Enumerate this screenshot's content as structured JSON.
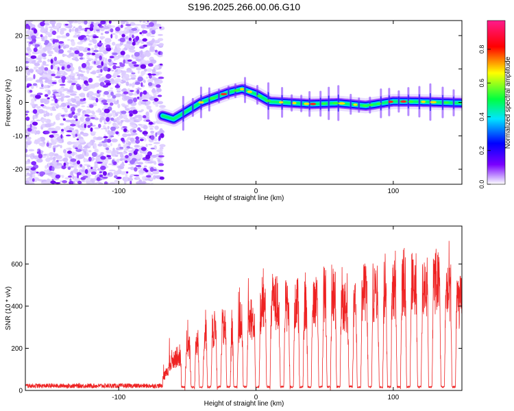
{
  "title": "S196.2025.266.00.06.G10",
  "colors": {
    "snr_line": "#ee2222",
    "axis": "#000000",
    "colormap": [
      "#ffffff",
      "#c8a0ff",
      "#7a00ff",
      "#0000ff",
      "#00e5ff",
      "#00ff40",
      "#ffff00",
      "#ff0000",
      "#ff1a8c"
    ]
  },
  "chart_data": [
    {
      "type": "heatmap",
      "id": "spectrogram",
      "xlabel": "Height of straight line (km)",
      "ylabel": "Frequency (Hz)",
      "xlim": [
        -168,
        150
      ],
      "ylim": [
        -24.5,
        24.5
      ],
      "xticks": [
        -100,
        0,
        100
      ],
      "xtick_labels": [
        "-100",
        "0",
        "100"
      ],
      "yticks": [
        -20,
        -10,
        0,
        10,
        20
      ],
      "ytick_labels": [
        "-20",
        "-10",
        "0",
        "10",
        "20"
      ],
      "noise_region_x": [
        -168,
        -68
      ],
      "ridge_start_x": -68,
      "ridge_points": {
        "x": [
          -68,
          -60,
          -50,
          -40,
          -30,
          -20,
          -10,
          0,
          10,
          20,
          40,
          60,
          80,
          100,
          120,
          150
        ],
        "y": [
          -4,
          -5,
          -2.5,
          0,
          1.5,
          3,
          4,
          2.5,
          0.2,
          0,
          -0.5,
          -0.2,
          -1,
          0.3,
          0.2,
          -0.2
        ]
      },
      "colorbar": {
        "label": "Normalized spectral amplitude",
        "range": [
          0.0,
          0.97
        ],
        "ticks": [
          0.0,
          0.2,
          0.4,
          0.6,
          0.8
        ],
        "tick_labels": [
          "0.0",
          "0.2",
          "0.4",
          "0.6",
          "0.8"
        ]
      }
    },
    {
      "type": "line",
      "id": "snr",
      "xlabel": "Height of straight line (km)",
      "ylabel": "SNR (10 * v/v)",
      "xlim": [
        -168,
        150
      ],
      "ylim": [
        0,
        780
      ],
      "xticks": [
        -100,
        0,
        100
      ],
      "xtick_labels": [
        "-100",
        "0",
        "100"
      ],
      "yticks": [
        0,
        200,
        400,
        600
      ],
      "ytick_labels": [
        "0",
        "200",
        "400",
        "600"
      ],
      "series": [
        {
          "name": "SNR",
          "envelope_x": [
            -168,
            -70,
            -68,
            -60,
            -50,
            -40,
            -30,
            -20,
            -10,
            0,
            10,
            20,
            30,
            40,
            50,
            60,
            70,
            80,
            90,
            100,
            110,
            120,
            130,
            140,
            150
          ],
          "envelope_y": [
            25,
            25,
            60,
            170,
            220,
            270,
            330,
            340,
            370,
            380,
            500,
            450,
            480,
            440,
            520,
            500,
            420,
            540,
            520,
            560,
            590,
            560,
            600,
            520,
            470
          ],
          "dropout_x": [
            -53,
            -46,
            -40,
            -34,
            -27,
            -20,
            -15,
            -8,
            1,
            9,
            19,
            26,
            33,
            39,
            47,
            53,
            60,
            69,
            75,
            83,
            91,
            97,
            104,
            111,
            119,
            127,
            136,
            144
          ],
          "dropout_value": 12
        }
      ]
    }
  ]
}
